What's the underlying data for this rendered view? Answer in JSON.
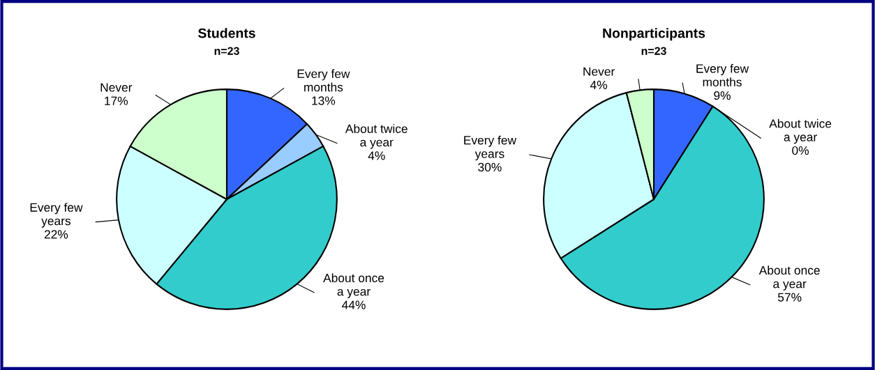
{
  "chart_data": [
    {
      "type": "pie",
      "title": "Students",
      "subtitle": "n=23",
      "categories": [
        "Every few\nmonths",
        "About twice\na year",
        "About once\na year",
        "Every few\nyears",
        "Never"
      ],
      "values": [
        13,
        4,
        44,
        22,
        17
      ],
      "value_labels": [
        "13%",
        "4%",
        "44%",
        "22%",
        "17%"
      ],
      "colors": [
        "#3366ff",
        "#99ccff",
        "#33cccc",
        "#ccffff",
        "#ccffcc"
      ]
    },
    {
      "type": "pie",
      "title": "Nonparticipants",
      "subtitle": "n=23",
      "categories": [
        "Every few\nmonths",
        "About twice\na year",
        "About once\na year",
        "Every few\nyears",
        "Never"
      ],
      "values": [
        9,
        0,
        57,
        30,
        4
      ],
      "value_labels": [
        "9%",
        "0%",
        "57%",
        "30%",
        "4%"
      ],
      "colors": [
        "#3366ff",
        "#99ccff",
        "#33cccc",
        "#ccffff",
        "#ccffcc"
      ]
    }
  ]
}
